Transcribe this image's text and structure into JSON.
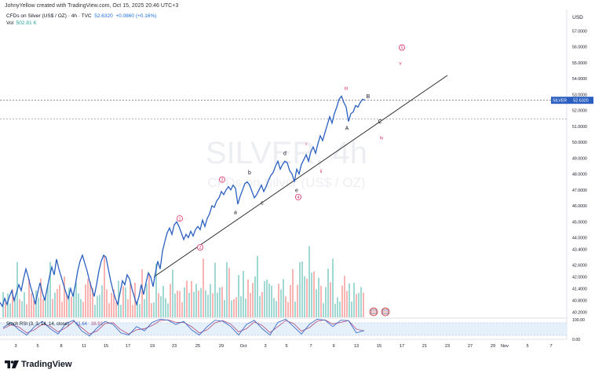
{
  "credit": "JohnyYellow created with TradingView.com, Oct 15, 2025 20:46 UTC+3",
  "legend": {
    "symbol": "CFDs on Silver (US$ / OZ) · 4h · TVC",
    "last": "52.6320",
    "change": "+0.0860 (+0.16%)",
    "vol_label": "Vol",
    "vol_value": "502.81 K"
  },
  "watermark": {
    "line1": "SILVER, 4h",
    "line2": "CFDs on Silver (US$ / OZ)"
  },
  "price_tag": {
    "symbol": "SILVER",
    "price": "52.6320"
  },
  "brand": "TradingView",
  "colors": {
    "price_line": "#2a5fc0",
    "up": "#26a69a",
    "down": "#ef5350",
    "wave": "#d6336c",
    "rsi_k": "#3e6ec9",
    "rsi_d": "#b35a8a"
  },
  "chart_data": {
    "type": "line",
    "title": "CFDs on Silver (US$ / OZ) · 4h · TVC",
    "currency": "USD",
    "ylim": [
      40.0,
      58.0
    ],
    "y_ticks": [
      "57.0000",
      "56.0000",
      "55.0000",
      "54.0000",
      "53.0000",
      "52.0000",
      "51.0000",
      "50.0000",
      "49.0000",
      "48.0000",
      "47.0000",
      "46.0000",
      "45.0000",
      "44.0000",
      "43.4000",
      "42.6000",
      "42.0000",
      "41.4000",
      "40.8000",
      "40.2000"
    ],
    "x_ticks": [
      "3",
      "5",
      "8",
      "11",
      "15",
      "17",
      "19",
      "23",
      "25",
      "29",
      "Oct",
      "3",
      "5",
      "7",
      "9",
      "13",
      "15",
      "17",
      "21",
      "23",
      "27",
      "29",
      "Nov",
      "5",
      "7"
    ],
    "series": [
      {
        "name": "SILVER close",
        "points": [
          [
            0,
            40.7
          ],
          [
            3,
            40.5
          ],
          [
            6,
            40.9
          ],
          [
            9,
            40.6
          ],
          [
            12,
            41.0
          ],
          [
            15,
            41.3
          ],
          [
            18,
            40.8
          ],
          [
            21,
            41.2
          ],
          [
            24,
            41.6
          ],
          [
            27,
            41.3
          ],
          [
            30,
            41.9
          ],
          [
            33,
            42.4
          ],
          [
            36,
            42.0
          ],
          [
            39,
            41.5
          ],
          [
            42,
            41.1
          ],
          [
            45,
            40.6
          ],
          [
            48,
            41.2
          ],
          [
            51,
            41.7
          ],
          [
            54,
            41.2
          ],
          [
            57,
            40.8
          ],
          [
            60,
            41.4
          ],
          [
            63,
            42.0
          ],
          [
            66,
            42.5
          ],
          [
            69,
            42.1
          ],
          [
            72,
            42.9
          ],
          [
            75,
            42.4
          ],
          [
            78,
            42.0
          ],
          [
            81,
            41.6
          ],
          [
            84,
            41.2
          ],
          [
            87,
            40.9
          ],
          [
            90,
            41.4
          ],
          [
            93,
            41.0
          ],
          [
            96,
            41.6
          ],
          [
            99,
            42.3
          ],
          [
            102,
            42.8
          ],
          [
            105,
            43.1
          ],
          [
            108,
            42.7
          ],
          [
            111,
            42.3
          ],
          [
            114,
            41.8
          ],
          [
            117,
            41.4
          ],
          [
            120,
            41.0
          ],
          [
            123,
            41.6
          ],
          [
            126,
            42.3
          ],
          [
            129,
            42.8
          ],
          [
            132,
            43.1
          ],
          [
            135,
            43.0
          ],
          [
            138,
            42.4
          ],
          [
            141,
            41.8
          ],
          [
            144,
            41.3
          ],
          [
            147,
            40.9
          ],
          [
            150,
            40.6
          ],
          [
            153,
            41.2
          ],
          [
            156,
            41.8
          ],
          [
            159,
            41.6
          ],
          [
            162,
            42.1
          ],
          [
            165,
            41.9
          ],
          [
            168,
            41.4
          ],
          [
            171,
            41.0
          ],
          [
            174,
            40.6
          ],
          [
            177,
            41.0
          ],
          [
            180,
            41.6
          ],
          [
            183,
            41.1
          ],
          [
            186,
            41.7
          ],
          [
            189,
            42.2
          ],
          [
            192,
            42.0
          ],
          [
            195,
            41.5
          ],
          [
            198,
            42.2
          ],
          [
            201,
            42.8
          ],
          [
            204,
            42.4
          ],
          [
            207,
            43.3
          ],
          [
            210,
            43.8
          ],
          [
            213,
            44.3
          ],
          [
            216,
            44.6
          ],
          [
            219,
            44.2
          ],
          [
            222,
            44.8
          ],
          [
            225,
            45.0
          ],
          [
            228,
            44.7
          ],
          [
            231,
            44.3
          ],
          [
            234,
            43.9
          ],
          [
            237,
            44.2
          ],
          [
            240,
            44.0
          ],
          [
            243,
            44.4
          ],
          [
            246,
            44.1
          ],
          [
            249,
            44.5
          ],
          [
            252,
            44.7
          ],
          [
            255,
            44.5
          ],
          [
            258,
            45.1
          ],
          [
            261,
            44.7
          ],
          [
            264,
            45.2
          ],
          [
            267,
            45.5
          ],
          [
            270,
            46.0
          ],
          [
            273,
            45.9
          ],
          [
            276,
            46.3
          ],
          [
            279,
            46.5
          ],
          [
            282,
            46.9
          ],
          [
            285,
            46.7
          ],
          [
            288,
            47.0
          ],
          [
            291,
            47.2
          ],
          [
            294,
            47.0
          ],
          [
            297,
            47.3
          ],
          [
            300,
            47.1
          ],
          [
            303,
            46.1
          ],
          [
            306,
            46.6
          ],
          [
            309,
            47.0
          ],
          [
            312,
            47.4
          ],
          [
            315,
            47.5
          ],
          [
            318,
            47.3
          ],
          [
            321,
            46.9
          ],
          [
            324,
            46.5
          ],
          [
            327,
            46.7
          ],
          [
            330,
            47.0
          ],
          [
            333,
            47.3
          ],
          [
            336,
            46.9
          ],
          [
            339,
            47.2
          ],
          [
            342,
            47.6
          ],
          [
            345,
            47.9
          ],
          [
            348,
            48.1
          ],
          [
            351,
            48.5
          ],
          [
            354,
            48.8
          ],
          [
            357,
            48.3
          ],
          [
            360,
            48.6
          ],
          [
            363,
            48.8
          ],
          [
            366,
            48.7
          ],
          [
            369,
            48.2
          ],
          [
            372,
            48.0
          ],
          [
            375,
            47.5
          ],
          [
            378,
            48.3
          ],
          [
            381,
            48.0
          ],
          [
            384,
            48.6
          ],
          [
            387,
            48.9
          ],
          [
            390,
            49.2
          ],
          [
            393,
            48.8
          ],
          [
            396,
            49.4
          ],
          [
            399,
            49.7
          ],
          [
            402,
            49.3
          ],
          [
            405,
            49.9
          ],
          [
            408,
            50.4
          ],
          [
            411,
            50.1
          ],
          [
            414,
            50.6
          ],
          [
            417,
            51.1
          ],
          [
            420,
            51.6
          ],
          [
            423,
            51.2
          ],
          [
            426,
            51.8
          ],
          [
            429,
            52.2
          ],
          [
            432,
            52.7
          ],
          [
            435,
            52.9
          ],
          [
            438,
            52.5
          ],
          [
            441,
            52.2
          ],
          [
            444,
            51.3
          ],
          [
            447,
            51.8
          ],
          [
            450,
            51.9
          ],
          [
            453,
            52.3
          ],
          [
            456,
            52.2
          ],
          [
            459,
            52.5
          ],
          [
            462,
            52.7
          ],
          [
            465,
            52.63
          ]
        ]
      }
    ],
    "trendline": {
      "from": [
        196,
        42.0
      ],
      "to": [
        570,
        54.2
      ]
    },
    "support_level": 51.45,
    "current_price": 52.632,
    "wave_labels": [
      {
        "text": "1",
        "x": 229,
        "y": 45.2,
        "circled": true,
        "color": "wave"
      },
      {
        "text": "2",
        "x": 255,
        "y": 43.5,
        "circled": true,
        "color": "wave"
      },
      {
        "text": "3",
        "x": 283,
        "y": 47.65,
        "circled": true,
        "color": "wave"
      },
      {
        "text": "4",
        "x": 380,
        "y": 46.55,
        "circled": true,
        "color": "wave"
      },
      {
        "text": "5",
        "x": 512,
        "y": 55.95,
        "circled": true,
        "color": "wave"
      },
      {
        "text": "a",
        "x": 300,
        "y": 45.6,
        "circled": false,
        "color": "dark"
      },
      {
        "text": "b",
        "x": 318,
        "y": 48.1,
        "circled": false,
        "color": "dark"
      },
      {
        "text": "c",
        "x": 334,
        "y": 46.2,
        "circled": false,
        "color": "dark"
      },
      {
        "text": "d",
        "x": 363,
        "y": 49.3,
        "circled": false,
        "color": "dark"
      },
      {
        "text": "e",
        "x": 378,
        "y": 47.0,
        "circled": false,
        "color": "dark"
      },
      {
        "text": "i",
        "x": 390,
        "y": 49.9,
        "circled": false,
        "color": "wave"
      },
      {
        "text": "ii",
        "x": 409,
        "y": 48.2,
        "circled": false,
        "color": "wave"
      },
      {
        "text": "iii",
        "x": 441,
        "y": 53.4,
        "circled": false,
        "color": "wave"
      },
      {
        "text": "A",
        "x": 442,
        "y": 50.9,
        "circled": false,
        "color": "dark"
      },
      {
        "text": "B",
        "x": 469,
        "y": 52.9,
        "circled": false,
        "color": "dark"
      },
      {
        "text": "C",
        "x": 484,
        "y": 51.3,
        "circled": false,
        "color": "dark"
      },
      {
        "text": "iv",
        "x": 486,
        "y": 50.3,
        "circled": false,
        "color": "wave"
      },
      {
        "text": "v",
        "x": 510,
        "y": 55.0,
        "circled": false,
        "color": "wave"
      }
    ],
    "rsi": {
      "label": "Stoch RSI (3, 3, 14, 14, close)",
      "k_value": "41.64",
      "d_value": "38.92",
      "upper_tick": "100.00",
      "lower_tick": "0.00",
      "bands": [
        80,
        20
      ],
      "k_points": [
        [
          4,
          55
        ],
        [
          14,
          80
        ],
        [
          24,
          45
        ],
        [
          34,
          20
        ],
        [
          44,
          60
        ],
        [
          54,
          85
        ],
        [
          64,
          50
        ],
        [
          74,
          25
        ],
        [
          84,
          75
        ],
        [
          94,
          90
        ],
        [
          104,
          40
        ],
        [
          114,
          15
        ],
        [
          124,
          55
        ],
        [
          134,
          85
        ],
        [
          144,
          70
        ],
        [
          154,
          30
        ],
        [
          164,
          20
        ],
        [
          174,
          60
        ],
        [
          184,
          40
        ],
        [
          194,
          80
        ],
        [
          204,
          95
        ],
        [
          214,
          90
        ],
        [
          224,
          70
        ],
        [
          234,
          85
        ],
        [
          244,
          45
        ],
        [
          254,
          20
        ],
        [
          264,
          60
        ],
        [
          274,
          90
        ],
        [
          284,
          85
        ],
        [
          294,
          60
        ],
        [
          304,
          20
        ],
        [
          314,
          70
        ],
        [
          324,
          90
        ],
        [
          334,
          50
        ],
        [
          344,
          20
        ],
        [
          354,
          80
        ],
        [
          364,
          95
        ],
        [
          374,
          60
        ],
        [
          384,
          25
        ],
        [
          394,
          70
        ],
        [
          404,
          95
        ],
        [
          414,
          90
        ],
        [
          424,
          60
        ],
        [
          434,
          90
        ],
        [
          444,
          88
        ],
        [
          454,
          30
        ],
        [
          464,
          41.64
        ]
      ],
      "d_points": [
        [
          4,
          50
        ],
        [
          14,
          68
        ],
        [
          24,
          58
        ],
        [
          34,
          30
        ],
        [
          44,
          45
        ],
        [
          54,
          72
        ],
        [
          64,
          62
        ],
        [
          74,
          35
        ],
        [
          84,
          55
        ],
        [
          94,
          85
        ],
        [
          104,
          55
        ],
        [
          114,
          25
        ],
        [
          124,
          40
        ],
        [
          134,
          75
        ],
        [
          144,
          78
        ],
        [
          154,
          45
        ],
        [
          164,
          25
        ],
        [
          174,
          45
        ],
        [
          184,
          50
        ],
        [
          194,
          65
        ],
        [
          204,
          88
        ],
        [
          214,
          92
        ],
        [
          224,
          80
        ],
        [
          234,
          80
        ],
        [
          244,
          60
        ],
        [
          254,
          30
        ],
        [
          264,
          45
        ],
        [
          274,
          78
        ],
        [
          284,
          88
        ],
        [
          294,
          72
        ],
        [
          304,
          35
        ],
        [
          314,
          50
        ],
        [
          324,
          82
        ],
        [
          334,
          65
        ],
        [
          344,
          32
        ],
        [
          354,
          60
        ],
        [
          364,
          88
        ],
        [
          374,
          75
        ],
        [
          384,
          38
        ],
        [
          394,
          55
        ],
        [
          404,
          85
        ],
        [
          414,
          92
        ],
        [
          424,
          72
        ],
        [
          434,
          80
        ],
        [
          444,
          88
        ],
        [
          454,
          48
        ],
        [
          464,
          38.92
        ]
      ]
    },
    "volume_bars_note": "volume histogram bars rendered on lower band of price pane (up = green, down = red)"
  }
}
